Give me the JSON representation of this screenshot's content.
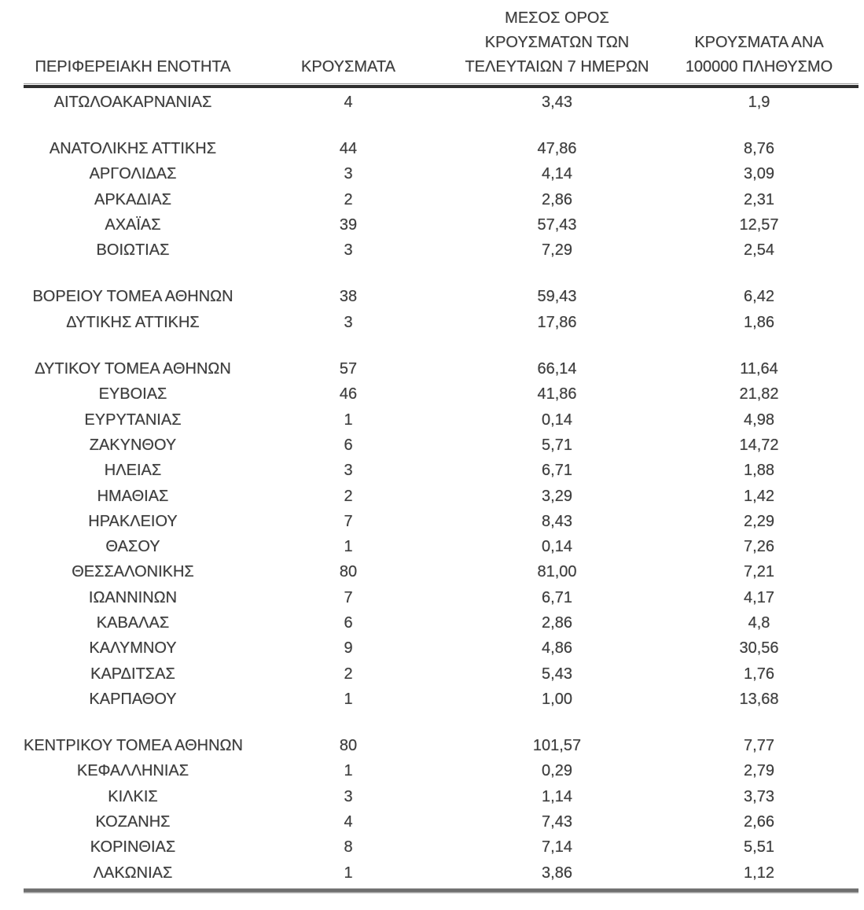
{
  "page": {
    "background_color": "#ffffff",
    "text_color": "#3d3d3d",
    "language": "el"
  },
  "table": {
    "columns": [
      {
        "id": "region",
        "label": "ΠΕΡΙΦΕΡΕΙΑΚΗ ΕΝΟΤΗΤΑ"
      },
      {
        "id": "cases",
        "label": "ΚΡΟΥΣΜΑΤΑ"
      },
      {
        "id": "avg7",
        "label": "ΜΕΣΟΣ ΟΡΟΣ\nΚΡΟΥΣΜΑΤΩΝ ΤΩΝ\nΤΕΛΕΥΤΑΙΩΝ 7 ΗΜΕΡΩΝ"
      },
      {
        "id": "per100k",
        "label": "ΚΡΟΥΣΜΑΤΑ ΑΝΑ\n100000 ΠΛΗΘΥΣΜΟ"
      }
    ],
    "groups": [
      {
        "rows": [
          [
            "ΑΙΤΩΛΟΑΚΑΡΝΑΝΙΑΣ",
            "4",
            "3,43",
            "1,9"
          ]
        ]
      },
      {
        "rows": [
          [
            "ΑΝΑΤΟΛΙΚΗΣ ΑΤΤΙΚΗΣ",
            "44",
            "47,86",
            "8,76"
          ],
          [
            "ΑΡΓΟΛΙΔΑΣ",
            "3",
            "4,14",
            "3,09"
          ],
          [
            "ΑΡΚΑΔΙΑΣ",
            "2",
            "2,86",
            "2,31"
          ],
          [
            "ΑΧΑΪΑΣ",
            "39",
            "57,43",
            "12,57"
          ],
          [
            "ΒΟΙΩΤΙΑΣ",
            "3",
            "7,29",
            "2,54"
          ]
        ]
      },
      {
        "rows": [
          [
            "ΒΟΡΕΙΟΥ ΤΟΜΕΑ ΑΘΗΝΩΝ",
            "38",
            "59,43",
            "6,42"
          ],
          [
            "ΔΥΤΙΚΗΣ ΑΤΤΙΚΗΣ",
            "3",
            "17,86",
            "1,86"
          ]
        ]
      },
      {
        "rows": [
          [
            "ΔΥΤΙΚΟΥ ΤΟΜΕΑ ΑΘΗΝΩΝ",
            "57",
            "66,14",
            "11,64"
          ],
          [
            "ΕΥΒΟΙΑΣ",
            "46",
            "41,86",
            "21,82"
          ],
          [
            "ΕΥΡΥΤΑΝΙΑΣ",
            "1",
            "0,14",
            "4,98"
          ],
          [
            "ΖΑΚΥΝΘΟΥ",
            "6",
            "5,71",
            "14,72"
          ],
          [
            "ΗΛΕΙΑΣ",
            "3",
            "6,71",
            "1,88"
          ],
          [
            "ΗΜΑΘΙΑΣ",
            "2",
            "3,29",
            "1,42"
          ],
          [
            "ΗΡΑΚΛΕΙΟΥ",
            "7",
            "8,43",
            "2,29"
          ],
          [
            "ΘΑΣΟΥ",
            "1",
            "0,14",
            "7,26"
          ],
          [
            "ΘΕΣΣΑΛΟΝΙΚΗΣ",
            "80",
            "81,00",
            "7,21"
          ],
          [
            "ΙΩΑΝΝΙΝΩΝ",
            "7",
            "6,71",
            "4,17"
          ],
          [
            "ΚΑΒΑΛΑΣ",
            "6",
            "2,86",
            "4,8"
          ],
          [
            "ΚΑΛΥΜΝΟΥ",
            "9",
            "4,86",
            "30,56"
          ],
          [
            "ΚΑΡΔΙΤΣΑΣ",
            "2",
            "5,43",
            "1,76"
          ],
          [
            "ΚΑΡΠΑΘΟΥ",
            "1",
            "1,00",
            "13,68"
          ]
        ]
      },
      {
        "rows": [
          [
            "ΚΕΝΤΡΙΚΟΥ ΤΟΜΕΑ ΑΘΗΝΩΝ",
            "80",
            "101,57",
            "7,77"
          ],
          [
            "ΚΕΦΑΛΛΗΝΙΑΣ",
            "1",
            "0,29",
            "2,79"
          ],
          [
            "ΚΙΛΚΙΣ",
            "3",
            "1,14",
            "3,73"
          ],
          [
            "ΚΟΖΑΝΗΣ",
            "4",
            "7,43",
            "2,66"
          ],
          [
            "ΚΟΡΙΝΘΙΑΣ",
            "8",
            "7,14",
            "5,51"
          ],
          [
            "ΛΑΚΩΝΙΑΣ",
            "1",
            "3,86",
            "1,12"
          ]
        ]
      }
    ]
  }
}
